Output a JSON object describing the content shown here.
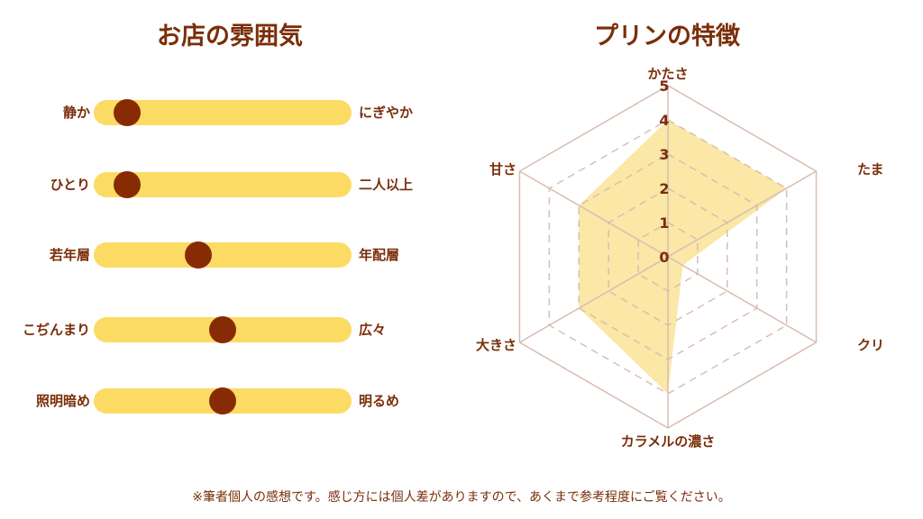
{
  "titles": {
    "left": "お店の雰囲気",
    "right": "プリンの特徴"
  },
  "chart_data": [
    {
      "type": "slider",
      "title": "お店の雰囲気",
      "range": [
        0,
        1
      ],
      "items": [
        {
          "left": "静か",
          "right": "にぎやか",
          "value": 0.07
        },
        {
          "left": "ひとり",
          "right": "二人以上",
          "value": 0.07
        },
        {
          "left": "若年層",
          "right": "年配層",
          "value": 0.39
        },
        {
          "left": "こぢんまり",
          "right": "広々",
          "value": 0.5
        },
        {
          "left": "照明暗め",
          "right": "明るめ",
          "value": 0.5
        }
      ]
    },
    {
      "type": "radar",
      "title": "プリンの特徴",
      "axes": [
        "かたさ",
        "たまご感",
        "クリーム感",
        "カラメルの濃さ",
        "大きさ",
        "甘さ"
      ],
      "values": [
        4,
        4,
        0.5,
        4,
        3,
        3
      ],
      "rlim": [
        0,
        5
      ],
      "ticks": [
        "0",
        "1",
        "2",
        "3",
        "4",
        "5"
      ],
      "grid": true,
      "fill_color": "#fbe7a6",
      "line_color": "#d8bdb2"
    }
  ],
  "footnote": "※筆者個人の感想です。感じ方には個人差がありますので、あくまで参考程度にご覧ください。"
}
